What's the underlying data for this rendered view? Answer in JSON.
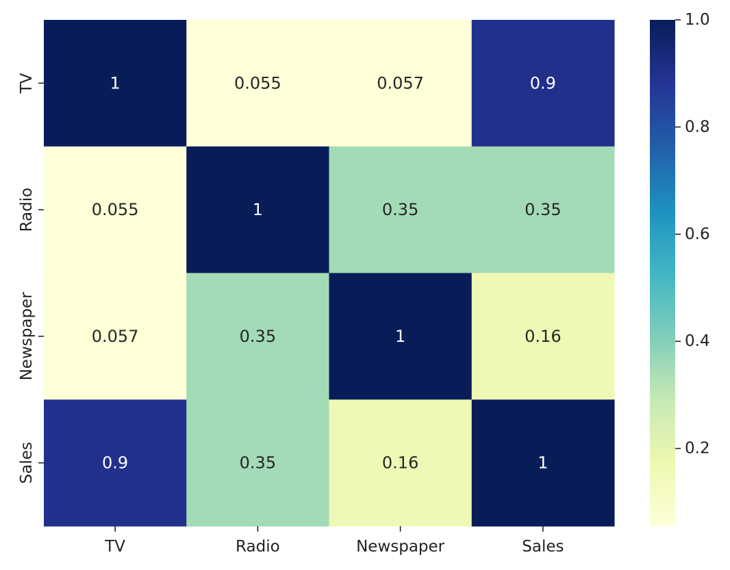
{
  "chart_data": {
    "type": "heatmap",
    "title": "",
    "xlabel": "",
    "ylabel": "",
    "x_categories": [
      "TV",
      "Radio",
      "Newspaper",
      "Sales"
    ],
    "y_categories": [
      "TV",
      "Radio",
      "Newspaper",
      "Sales"
    ],
    "values": [
      [
        1,
        0.055,
        0.057,
        0.9
      ],
      [
        0.055,
        1,
        0.35,
        0.35
      ],
      [
        0.057,
        0.35,
        1,
        0.16
      ],
      [
        0.9,
        0.35,
        0.16,
        1
      ]
    ],
    "annotations": [
      [
        "1",
        "0.055",
        "0.057",
        "0.9"
      ],
      [
        "0.055",
        "1",
        "0.35",
        "0.35"
      ],
      [
        "0.057",
        "0.35",
        "1",
        "0.16"
      ],
      [
        "0.9",
        "0.35",
        "0.16",
        "1"
      ]
    ],
    "colormap": "YlGnBu",
    "colorbar": {
      "range": [
        0.055,
        1.0
      ],
      "ticks": [
        0.2,
        0.4,
        0.6,
        0.8,
        1.0
      ],
      "tick_labels": [
        "0.2",
        "0.4",
        "0.6",
        "0.8",
        "1.0"
      ]
    }
  }
}
